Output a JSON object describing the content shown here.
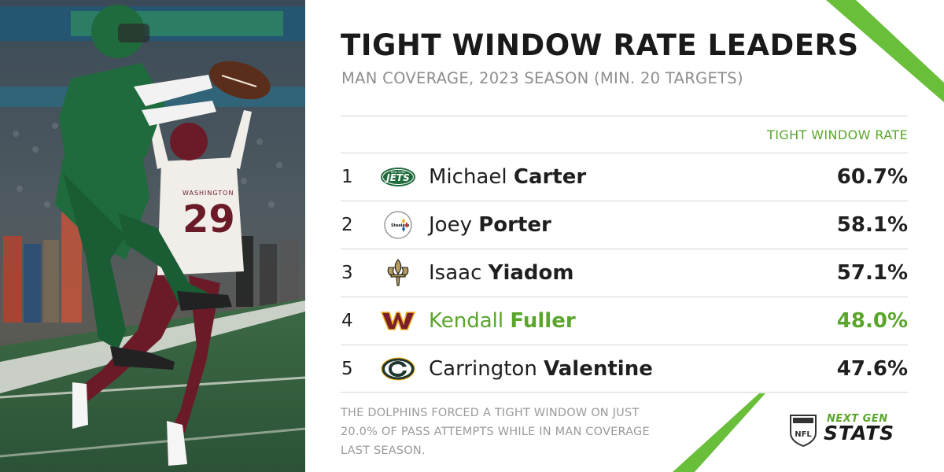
{
  "header": {
    "title": "TIGHT WINDOW RATE LEADERS",
    "subtitle": "MAN COVERAGE, 2023 SEASON (MIN. 20 TARGETS)"
  },
  "table": {
    "column_header": "TIGHT WINDOW RATE",
    "rows": [
      {
        "rank": "1",
        "first": "Michael",
        "last": "Carter",
        "rate": "60.7%",
        "team_logo": "jets-logo-icon",
        "highlight": false
      },
      {
        "rank": "2",
        "first": "Joey",
        "last": "Porter",
        "rate": "58.1%",
        "team_logo": "steelers-logo-icon",
        "highlight": false
      },
      {
        "rank": "3",
        "first": "Isaac",
        "last": "Yiadom",
        "rate": "57.1%",
        "team_logo": "saints-logo-icon",
        "highlight": false
      },
      {
        "rank": "4",
        "first": "Kendall",
        "last": "Fuller",
        "rate": "48.0%",
        "team_logo": "commanders-logo-icon",
        "highlight": true
      },
      {
        "rank": "5",
        "first": "Carrington",
        "last": "Valentine",
        "rate": "47.6%",
        "team_logo": "packers-logo-icon",
        "highlight": false
      }
    ]
  },
  "footnote": "THE DOLPHINS FORCED A TIGHT WINDOW ON JUST 20.0% OF PASS ATTEMPTS WHILE IN MAN COVERAGE LAST SEASON.",
  "brand": {
    "line1": "NEXT GEN",
    "line2": "STATS",
    "shield_text": "NFL"
  },
  "photo": {
    "jersey_number": "29",
    "jersey_team": "WASHINGTON"
  },
  "colors": {
    "accent_green": "#5aa52c",
    "title_dark": "#1a1a1a",
    "subtitle_gray": "#8e8e8e"
  }
}
